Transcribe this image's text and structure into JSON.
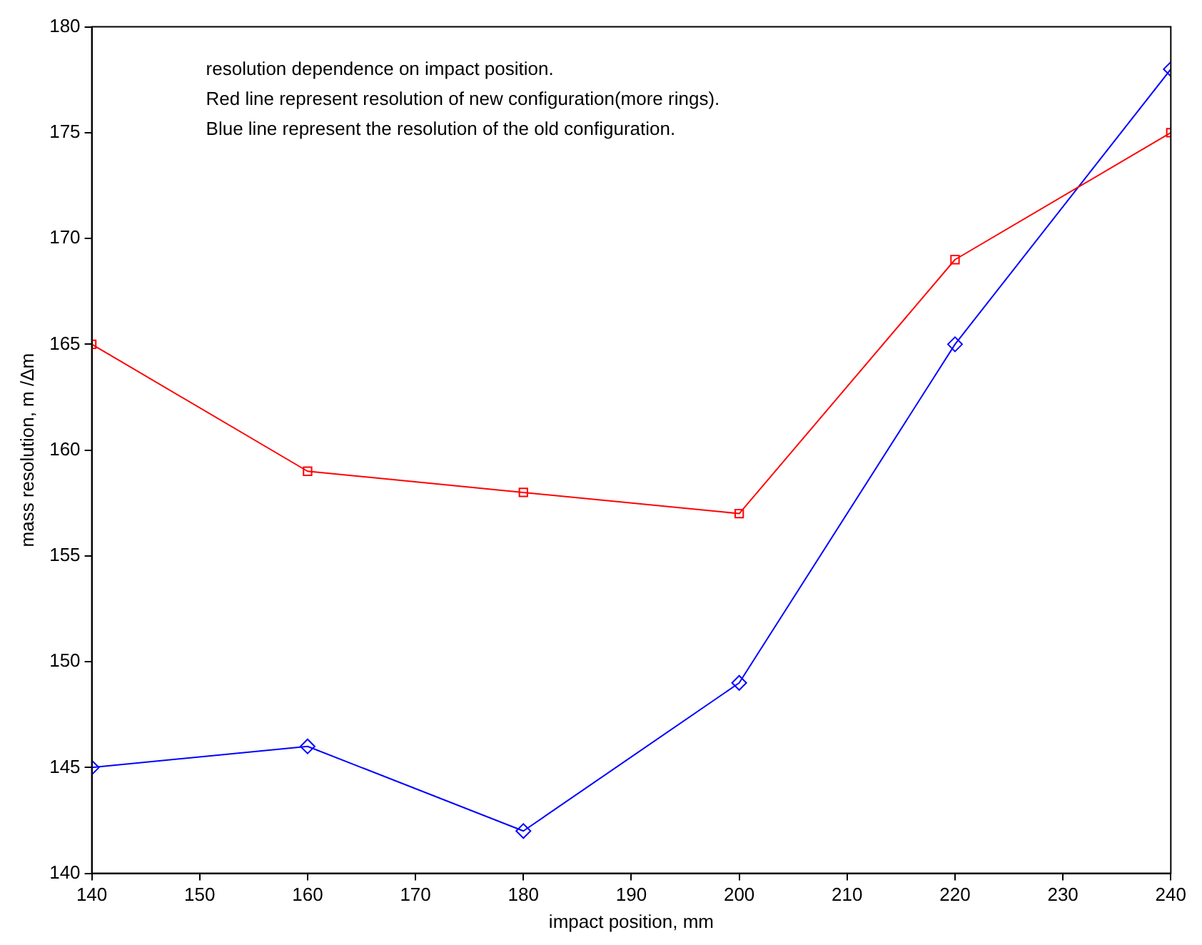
{
  "chart_data": {
    "type": "line",
    "xlabel": "impact position, mm",
    "ylabel": "mass resolution, m /Δm",
    "annotations": [
      "resolution dependence on impact position.",
      "Red line represent resolution of new configuration(more rings).",
      "Blue line represent the resolution of the old configuration."
    ],
    "x": [
      140,
      160,
      180,
      200,
      220,
      240
    ],
    "series": [
      {
        "color": "#ff0000",
        "marker": "square",
        "values": [
          165,
          159,
          158,
          157,
          169,
          175
        ]
      },
      {
        "color": "#0000ff",
        "marker": "diamond",
        "values": [
          145,
          146,
          142,
          149,
          165,
          178
        ]
      }
    ],
    "xlim": [
      140,
      240
    ],
    "xticks": [
      140,
      150,
      160,
      170,
      180,
      190,
      200,
      210,
      220,
      230,
      240
    ],
    "ylim": [
      140,
      180
    ],
    "yticks": [
      140,
      145,
      150,
      155,
      160,
      165,
      170,
      175,
      180
    ],
    "grid": false,
    "legend": false,
    "line_style": "solid"
  }
}
